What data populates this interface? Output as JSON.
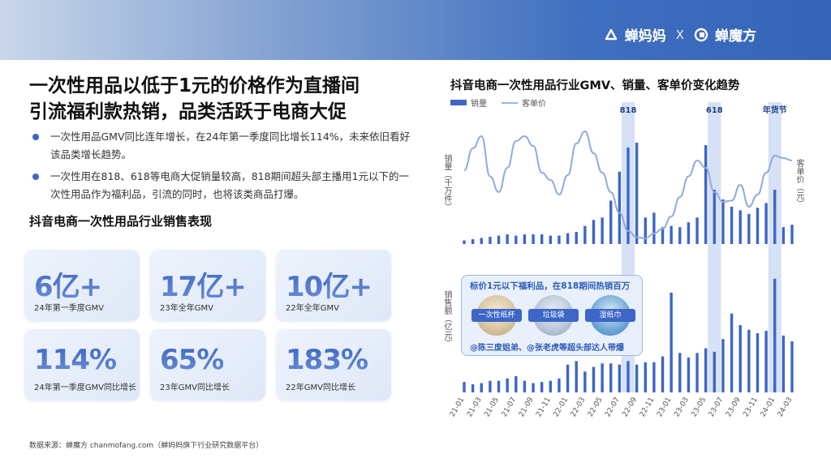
{
  "brand": {
    "name1": "蝉妈妈",
    "separator": "X",
    "name2": "蝉魔方"
  },
  "main_title": {
    "line1": "一次性用品以低于1元的价格作为直播间",
    "line2": "引流福利款热销，品类活跃于电商大促"
  },
  "bullets": [
    "一次性用品GMV同比连年增长，在24年第一季度同比增长114%，未来依旧看好该品类增长趋势。",
    "一次性用在818、618等电商大促销量较高，818期间超头部主播用1元以下的一次性用品作为福利品，引流的同时，也将该类商品打爆。"
  ],
  "section_title": "抖音电商一次性用品行业销售表现",
  "cards": [
    {
      "value": "6亿+",
      "label": "24年第一季度GMV"
    },
    {
      "value": "17亿+",
      "label": "23年全年GMV"
    },
    {
      "value": "10亿+",
      "label": "22年全年GMV"
    },
    {
      "value": "114%",
      "label": "24年第一季度GMV同比增长"
    },
    {
      "value": "65%",
      "label": "23年GMV同比增长"
    },
    {
      "value": "183%",
      "label": "22年GMV同比增长"
    }
  ],
  "source": "数据来源：蝉魔方 chanmofang.com（蝉妈妈旗下行业研究数据平台）",
  "callout": {
    "title": "标价1元以下福利品，在818期间热销百万",
    "products": [
      "一次性纸杯",
      "垃圾袋",
      "湿纸巾"
    ],
    "footer": "@陈三废姐弟、@张老虎等超头部达人带爆"
  },
  "colors": {
    "accent": "#3d66c6",
    "line": "#8fabe0",
    "highlight": "#c9d7f1"
  },
  "chart_data": {
    "type": "bar",
    "title": "抖音电商一次性用品行业GMV、销量、客单价变化趋势",
    "legend": [
      "销量",
      "客单价"
    ],
    "y_label_top": "销量（千万件）",
    "y_label_top_right": "客单价（元）",
    "y_label_bottom": "销售额（亿元）",
    "x_tick_labels": [
      "21-01",
      "21-03",
      "21-05",
      "21-07",
      "21-09",
      "21-11",
      "22-01",
      "22-03",
      "22-05",
      "22-07",
      "22-09",
      "22-11",
      "23-01",
      "23-03",
      "23-05",
      "23-07",
      "23-09",
      "23-11",
      "24-01",
      "24-03"
    ],
    "highlights": [
      {
        "label": "818",
        "month_index": 19
      },
      {
        "label": "618",
        "month_index": 29
      },
      {
        "label": "年货节",
        "month_index": 36
      }
    ],
    "months": [
      "21-01",
      "21-02",
      "21-03",
      "21-04",
      "21-05",
      "21-06",
      "21-07",
      "21-08",
      "21-09",
      "21-10",
      "21-11",
      "21-12",
      "22-01",
      "22-02",
      "22-03",
      "22-04",
      "22-05",
      "22-06",
      "22-07",
      "22-08",
      "22-09",
      "22-10",
      "22-11",
      "22-12",
      "23-01",
      "23-02",
      "23-03",
      "23-04",
      "23-05",
      "23-06",
      "23-07",
      "23-08",
      "23-09",
      "23-10",
      "23-11",
      "23-12",
      "24-01",
      "24-02",
      "24-03"
    ],
    "volume": [
      0.3,
      0.4,
      0.5,
      0.6,
      0.7,
      0.8,
      0.7,
      0.8,
      0.8,
      0.8,
      0.7,
      0.7,
      0.9,
      1.0,
      1.5,
      2.0,
      2.2,
      3.6,
      6.0,
      8.0,
      8.4,
      2.2,
      2.6,
      1.4,
      1.5,
      1.4,
      1.8,
      2.2,
      8.2,
      4.5,
      3.7,
      3.1,
      2.8,
      2.5,
      3.0,
      3.4,
      4.5,
      1.4,
      1.6
    ],
    "unit_price": [
      0.6,
      0.78,
      0.88,
      0.55,
      0.42,
      0.62,
      0.84,
      0.88,
      0.8,
      0.58,
      0.52,
      0.4,
      0.56,
      0.82,
      0.92,
      0.74,
      0.58,
      0.42,
      0.25,
      0.1,
      0.05,
      0.04,
      0.08,
      0.12,
      0.22,
      0.38,
      0.55,
      0.68,
      0.62,
      0.42,
      0.34,
      0.35,
      0.48,
      0.3,
      0.4,
      0.58,
      0.72,
      0.7,
      0.68
    ],
    "sales": [
      0.9,
      0.7,
      0.8,
      1.0,
      1.0,
      1.2,
      1.4,
      1.0,
      0.8,
      0.9,
      1.0,
      1.2,
      2.4,
      2.7,
      1.8,
      2.2,
      2.5,
      2.5,
      2.4,
      2.7,
      2.4,
      2.6,
      2.6,
      3.1,
      8.6,
      3.4,
      3.0,
      3.4,
      3.8,
      3.5,
      4.6,
      6.8,
      5.8,
      5.4,
      5.1,
      5.3,
      9.8,
      4.9,
      4.4
    ],
    "note": "values estimated from bar/line heights; axes unlabeled numerically"
  }
}
